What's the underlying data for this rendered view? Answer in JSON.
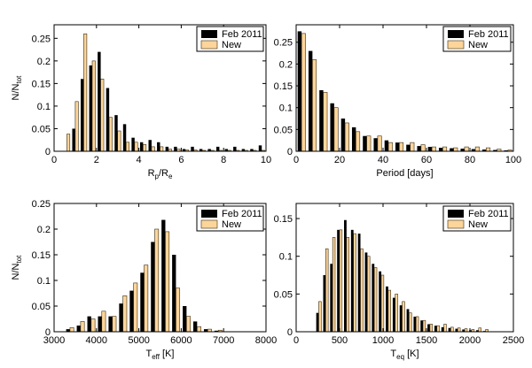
{
  "colors": {
    "feb": "#000000",
    "new": "#fcd59a",
    "new_edge": "#3a2a10",
    "axis": "#000000"
  },
  "legend": {
    "series_a": "Feb 2011",
    "series_b": "New"
  },
  "chart_data": [
    {
      "type": "bar",
      "title": "",
      "xlabel_main": "R",
      "xlabel_sub1": "p",
      "xlabel_mid": "/R",
      "xlabel_sub2": "e",
      "ylabel_main": "N/N",
      "ylabel_sub": "tot",
      "xlim": [
        0,
        10
      ],
      "ylim": [
        0,
        0.28
      ],
      "xticks": [
        0,
        2,
        4,
        6,
        8,
        10
      ],
      "xtick_labels": [
        "0",
        "2",
        "4",
        "6",
        "8",
        "10"
      ],
      "yticks": [
        0,
        0.05,
        0.1,
        0.15,
        0.2,
        0.25
      ],
      "ytick_labels": [
        "0",
        "0.05",
        "0.1",
        "0.15",
        "0.2",
        "0.25"
      ],
      "x": [
        0.6,
        1.0,
        1.4,
        1.8,
        2.2,
        2.6,
        3.0,
        3.4,
        3.8,
        4.2,
        4.6,
        5.0,
        5.4,
        5.8,
        6.2,
        6.6,
        7.0,
        7.4,
        7.8,
        8.2,
        8.6,
        9.0,
        9.4,
        9.8
      ],
      "series": [
        {
          "name": "Feb 2011",
          "values": [
            0.0,
            0.05,
            0.16,
            0.19,
            0.22,
            0.14,
            0.08,
            0.06,
            0.03,
            0.02,
            0.025,
            0.02,
            0.01,
            0.01,
            0.005,
            0.01,
            0.005,
            0.005,
            0.01,
            0.005,
            0.01,
            0.005,
            0.005,
            0.013
          ]
        },
        {
          "name": "New",
          "values": [
            0.038,
            0.11,
            0.26,
            0.2,
            0.16,
            0.075,
            0.045,
            0.02,
            0.02,
            0.015,
            0.01,
            0.01,
            0.005,
            0.005,
            0.003,
            0.003,
            0.002,
            0.002,
            0.002,
            0.002,
            0.002,
            0.002,
            0.002,
            0.002
          ]
        }
      ]
    },
    {
      "type": "bar",
      "title": "",
      "xlabel_main": "Period [days]",
      "xlabel_sub1": "",
      "xlabel_mid": "",
      "xlabel_sub2": "",
      "ylabel_main": "",
      "ylabel_sub": "",
      "xlim": [
        0,
        100
      ],
      "ylim": [
        0,
        0.29
      ],
      "xticks": [
        0,
        20,
        40,
        60,
        80,
        100
      ],
      "xtick_labels": [
        "0",
        "20",
        "40",
        "60",
        "80",
        "100"
      ],
      "yticks": [
        0,
        0.05,
        0.1,
        0.15,
        0.2,
        0.25
      ],
      "ytick_labels": [
        "0",
        "0.05",
        "0.1",
        "0.15",
        "0.2",
        "0.25"
      ],
      "x": [
        2.5,
        7.5,
        12.5,
        17.5,
        22.5,
        27.5,
        32.5,
        37.5,
        42.5,
        47.5,
        52.5,
        57.5,
        62.5,
        67.5,
        72.5,
        77.5,
        82.5,
        87.5,
        92.5,
        97.5
      ],
      "series": [
        {
          "name": "Feb 2011",
          "values": [
            0.275,
            0.23,
            0.14,
            0.11,
            0.075,
            0.055,
            0.035,
            0.03,
            0.025,
            0.02,
            0.015,
            0.012,
            0.01,
            0.008,
            0.007,
            0.006,
            0.005,
            0.004,
            0.003,
            0.002
          ]
        },
        {
          "name": "New",
          "values": [
            0.27,
            0.21,
            0.135,
            0.1,
            0.065,
            0.045,
            0.035,
            0.035,
            0.02,
            0.02,
            0.02,
            0.015,
            0.01,
            0.01,
            0.008,
            0.01,
            0.01,
            0.008,
            0.005,
            0.003
          ]
        }
      ]
    },
    {
      "type": "bar",
      "title": "",
      "xlabel_main": "T",
      "xlabel_sub1": "eff",
      "xlabel_mid": " [K]",
      "xlabel_sub2": "",
      "ylabel_main": "N/N",
      "ylabel_sub": "tot",
      "xlim": [
        3000,
        8000
      ],
      "ylim": [
        0,
        0.25
      ],
      "xticks": [
        3000,
        4000,
        5000,
        6000,
        7000,
        8000
      ],
      "xtick_labels": [
        "3000",
        "4000",
        "5000",
        "6000",
        "7000",
        "8000"
      ],
      "yticks": [
        0,
        0.05,
        0.1,
        0.15,
        0.2,
        0.25
      ],
      "ytick_labels": [
        "0",
        "0.05",
        "0.1",
        "0.15",
        "0.2",
        "0.25"
      ],
      "x": [
        3375,
        3625,
        3875,
        4125,
        4375,
        4625,
        4875,
        5125,
        5375,
        5625,
        5875,
        6125,
        6375,
        6625,
        6875
      ],
      "series": [
        {
          "name": "Feb 2011",
          "values": [
            0.005,
            0.012,
            0.03,
            0.03,
            0.03,
            0.055,
            0.08,
            0.115,
            0.175,
            0.218,
            0.15,
            0.05,
            0.02,
            0.005,
            0.002
          ]
        },
        {
          "name": "New",
          "values": [
            0.008,
            0.02,
            0.025,
            0.04,
            0.03,
            0.07,
            0.095,
            0.13,
            0.2,
            0.195,
            0.085,
            0.03,
            0.01,
            0.005,
            0.003
          ]
        }
      ]
    },
    {
      "type": "bar",
      "title": "",
      "xlabel_main": "T",
      "xlabel_sub1": "eq",
      "xlabel_mid": " [K]",
      "xlabel_sub2": "",
      "ylabel_main": "",
      "ylabel_sub": "",
      "xlim": [
        0,
        2500
      ],
      "ylim": [
        0,
        0.17
      ],
      "xticks": [
        0,
        500,
        1000,
        1500,
        2000,
        2500
      ],
      "xtick_labels": [
        "0",
        "500",
        "1000",
        "1500",
        "2000",
        "2500"
      ],
      "yticks": [
        0,
        0.05,
        0.1,
        0.15
      ],
      "ytick_labels": [
        "0",
        "0.05",
        "0.1",
        "0.15"
      ],
      "x": [
        260,
        340,
        420,
        500,
        580,
        660,
        740,
        820,
        900,
        980,
        1060,
        1140,
        1220,
        1300,
        1380,
        1460,
        1540,
        1620,
        1700,
        1780,
        1860,
        1940,
        2020,
        2100,
        2180
      ],
      "series": [
        {
          "name": "Feb 2011",
          "values": [
            0.025,
            0.075,
            0.09,
            0.135,
            0.148,
            0.135,
            0.13,
            0.105,
            0.09,
            0.08,
            0.06,
            0.045,
            0.035,
            0.03,
            0.02,
            0.015,
            0.01,
            0.008,
            0.006,
            0.005,
            0.004,
            0.003,
            0.002,
            0.002,
            0.001
          ]
        },
        {
          "name": "New",
          "values": [
            0.04,
            0.11,
            0.125,
            0.135,
            0.125,
            0.13,
            0.11,
            0.1,
            0.085,
            0.075,
            0.055,
            0.05,
            0.04,
            0.025,
            0.02,
            0.015,
            0.01,
            0.008,
            0.01,
            0.006,
            0.005,
            0.004,
            0.003,
            0.005,
            0.003
          ]
        }
      ]
    }
  ]
}
